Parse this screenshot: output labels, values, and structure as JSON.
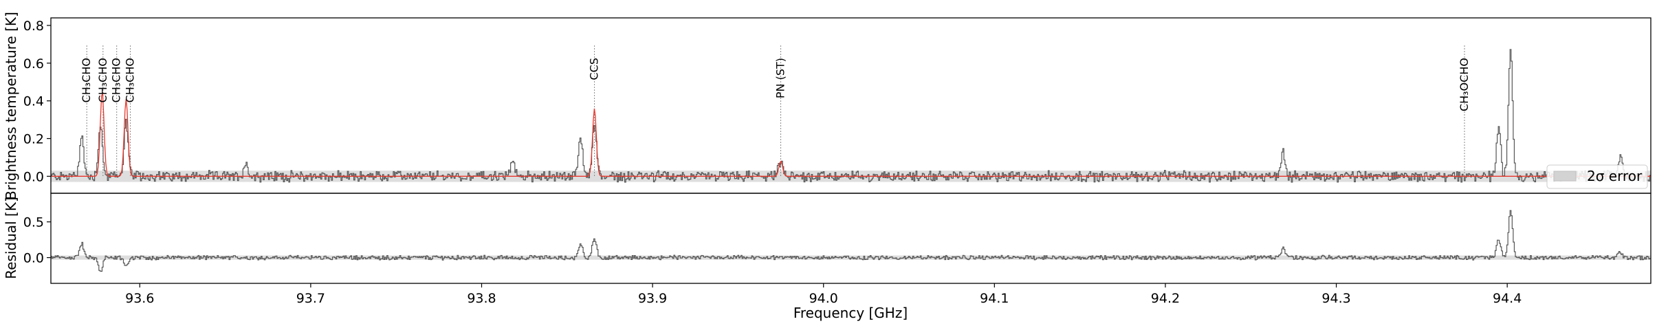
{
  "chart_data": {
    "type": "line",
    "xlabel": "Frequency [GHz]",
    "xlim": [
      93.548,
      94.484
    ],
    "xticks": [
      93.6,
      93.7,
      93.8,
      93.9,
      94.0,
      94.1,
      94.2,
      94.3,
      94.4
    ],
    "xtick_labels": [
      "93.6",
      "93.7",
      "93.8",
      "93.9",
      "94.0",
      "94.1",
      "94.2",
      "94.3",
      "94.4"
    ],
    "top_panel": {
      "ylabel": "Brightness temperature [K]",
      "ylim": [
        -0.09,
        0.84
      ],
      "yticks": [
        0.0,
        0.2,
        0.4,
        0.6,
        0.8
      ],
      "ytick_labels": [
        "0.0",
        "0.2",
        "0.4",
        "0.6",
        "0.8"
      ],
      "error_band": [
        -0.03,
        0.03
      ],
      "legend": {
        "label": "2σ error",
        "placement": "right"
      },
      "observed_peaks": [
        {
          "x": 93.566,
          "y": 0.21
        },
        {
          "x": 93.577,
          "y": 0.27
        },
        {
          "x": 93.592,
          "y": 0.29
        },
        {
          "x": 93.662,
          "y": 0.07
        },
        {
          "x": 93.818,
          "y": 0.08
        },
        {
          "x": 93.858,
          "y": 0.2
        },
        {
          "x": 93.866,
          "y": 0.28
        },
        {
          "x": 93.975,
          "y": 0.08
        },
        {
          "x": 94.269,
          "y": 0.13
        },
        {
          "x": 94.395,
          "y": 0.27
        },
        {
          "x": 94.402,
          "y": 0.68
        },
        {
          "x": 94.466,
          "y": 0.1
        }
      ],
      "model_peaks": [
        {
          "x": 93.578,
          "y": 0.45
        },
        {
          "x": 93.592,
          "y": 0.41
        },
        {
          "x": 93.866,
          "y": 0.36
        },
        {
          "x": 93.975,
          "y": 0.08
        }
      ],
      "line_ids": [
        {
          "x": 93.569,
          "label": "CH₃CHO"
        },
        {
          "x": 93.5785,
          "label": "CH₃CHO"
        },
        {
          "x": 93.5865,
          "label": "CH₃CHO"
        },
        {
          "x": 93.5945,
          "label": "CH₃CHO"
        },
        {
          "x": 93.866,
          "label": "CCS"
        },
        {
          "x": 93.975,
          "label": "PN (ST)"
        },
        {
          "x": 94.375,
          "label": "CH₃OCHO"
        }
      ]
    },
    "bottom_panel": {
      "ylabel": "Residual [K]",
      "ylim": [
        -0.36,
        0.9
      ],
      "yticks": [
        0.0,
        0.5
      ],
      "ytick_labels": [
        "0.0",
        "0.5"
      ],
      "error_band": [
        -0.03,
        0.03
      ],
      "residual_peaks": [
        {
          "x": 93.566,
          "y": 0.2
        },
        {
          "x": 93.577,
          "y": -0.2
        },
        {
          "x": 93.592,
          "y": -0.12
        },
        {
          "x": 93.858,
          "y": 0.2
        },
        {
          "x": 93.866,
          "y": 0.26
        },
        {
          "x": 94.269,
          "y": 0.13
        },
        {
          "x": 94.395,
          "y": 0.25
        },
        {
          "x": 94.402,
          "y": 0.67
        },
        {
          "x": 94.466,
          "y": 0.08
        }
      ]
    }
  }
}
